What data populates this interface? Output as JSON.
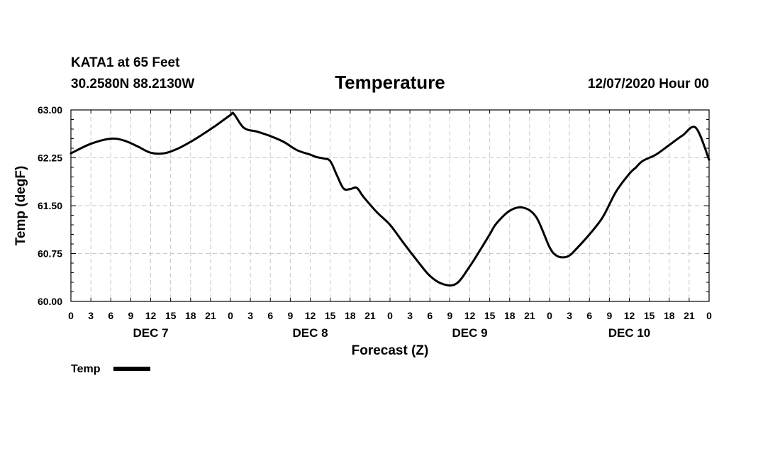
{
  "header": {
    "station": "KATA1 at 65 Feet",
    "coords": "30.2580N 88.2130W",
    "title": "Temperature",
    "run": "12/07/2020 Hour 00"
  },
  "legend": {
    "label": "Temp"
  },
  "colors": {
    "line": "#000000",
    "grid": "#c8c8c8",
    "axis": "#000000"
  },
  "chart_data": {
    "type": "line",
    "title": "Temperature",
    "xlabel": "Forecast (Z)",
    "ylabel": "Temp (degF)",
    "xlim": [
      0,
      96
    ],
    "ylim": [
      60.0,
      63.0
    ],
    "grid": true,
    "legend_position": "bottom-left",
    "y_ticks": [
      "60.00",
      "60.75",
      "61.50",
      "62.25",
      "63.00"
    ],
    "y_tick_values": [
      60.0,
      60.75,
      61.5,
      62.25,
      63.0
    ],
    "x_ticks": [
      "0",
      "3",
      "6",
      "9",
      "12",
      "15",
      "18",
      "21",
      "0",
      "3",
      "6",
      "9",
      "12",
      "15",
      "18",
      "21",
      "0",
      "3",
      "6",
      "9",
      "12",
      "15",
      "18",
      "21",
      "0",
      "3",
      "6",
      "9",
      "12",
      "15",
      "18",
      "21",
      "0"
    ],
    "day_labels": [
      {
        "label": "DEC 7",
        "x": 12
      },
      {
        "label": "DEC 8",
        "x": 36
      },
      {
        "label": "DEC 9",
        "x": 60
      },
      {
        "label": "DEC 10",
        "x": 84
      }
    ],
    "series": [
      {
        "name": "Temp",
        "x": [
          0,
          3,
          6,
          8,
          10,
          12,
          14,
          16,
          18,
          20,
          22,
          24,
          24.5,
          26,
          28,
          30,
          32,
          34,
          36,
          37,
          38,
          39,
          40,
          41,
          42,
          43,
          44,
          46,
          48,
          50,
          52,
          54,
          56,
          58,
          60,
          62,
          63,
          64,
          66,
          68,
          70,
          72,
          73,
          74,
          75,
          76,
          78,
          80,
          82,
          84,
          85,
          86,
          88,
          90,
          92,
          94,
          96
        ],
        "values": [
          62.32,
          62.47,
          62.55,
          62.52,
          62.43,
          62.33,
          62.32,
          62.39,
          62.5,
          62.63,
          62.77,
          62.92,
          62.94,
          62.72,
          62.66,
          62.59,
          62.5,
          62.37,
          62.3,
          62.26,
          62.24,
          62.2,
          61.98,
          61.77,
          61.76,
          61.78,
          61.64,
          61.4,
          61.2,
          60.92,
          60.65,
          60.4,
          60.27,
          60.28,
          60.55,
          60.88,
          61.05,
          61.22,
          61.42,
          61.47,
          61.32,
          60.85,
          60.72,
          60.69,
          60.72,
          60.82,
          61.05,
          61.32,
          61.72,
          62.0,
          62.1,
          62.2,
          62.3,
          62.45,
          62.6,
          62.72,
          62.22
        ]
      }
    ]
  }
}
